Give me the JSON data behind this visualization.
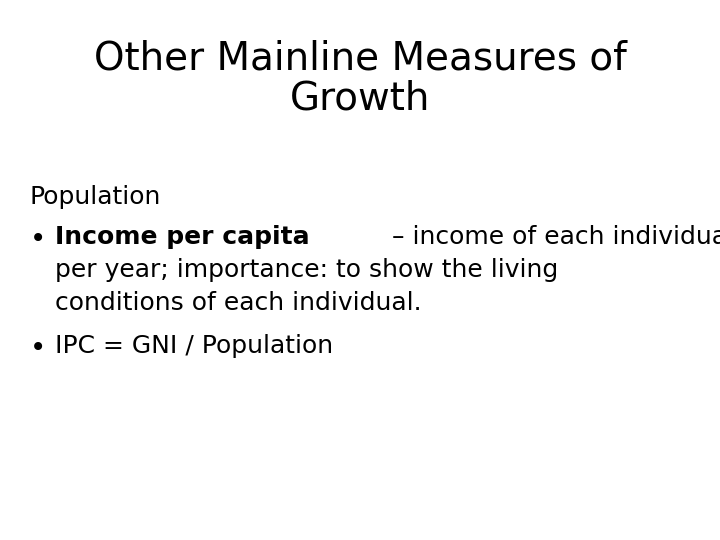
{
  "title_line1": "Other Mainline Measures of",
  "title_line2": "Growth",
  "background_color": "#ffffff",
  "text_color": "#000000",
  "title_fontsize": 28,
  "body_fontsize": 18,
  "bullet1_bold": "Income per capita",
  "bullet1_rest_line1": " – income of each individual",
  "bullet1_line2": "per year; importance: to show the living",
  "bullet1_line3": "conditions of each individual.",
  "bullet2": "IPC = GNI / Population",
  "section_label": "Population"
}
